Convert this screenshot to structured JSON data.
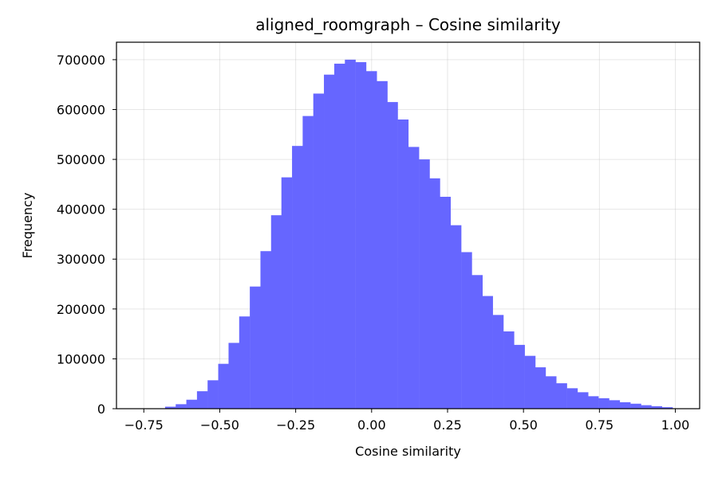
{
  "chart_data": {
    "type": "bar",
    "title": "aligned_roomgraph – Cosine similarity",
    "xlabel": "Cosine similarity",
    "ylabel": "Frequency",
    "xlim": [
      -0.84,
      1.08
    ],
    "ylim": [
      0,
      735000
    ],
    "xticks": [
      -0.75,
      -0.5,
      -0.25,
      0.0,
      0.25,
      0.5,
      0.75,
      1.0
    ],
    "xtick_labels": [
      "−0.75",
      "−0.50",
      "−0.25",
      "0.00",
      "0.25",
      "0.50",
      "0.75",
      "1.00"
    ],
    "yticks": [
      0,
      100000,
      200000,
      300000,
      400000,
      500000,
      600000,
      700000
    ],
    "ytick_labels": [
      "0",
      "100000",
      "200000",
      "300000",
      "400000",
      "500000",
      "600000",
      "700000"
    ],
    "grid": true,
    "bar_color": "#6666ff",
    "bin_width": 0.0348,
    "bins": [
      -0.68,
      -0.645,
      -0.61,
      -0.575,
      -0.54,
      -0.505,
      -0.471,
      -0.436,
      -0.401,
      -0.366,
      -0.331,
      -0.297,
      -0.262,
      -0.227,
      -0.192,
      -0.157,
      -0.123,
      -0.088,
      -0.053,
      -0.018,
      0.017,
      0.051,
      0.086,
      0.121,
      0.156,
      0.19,
      0.225,
      0.26,
      0.295,
      0.33,
      0.364,
      0.399,
      0.434,
      0.469,
      0.504,
      0.538,
      0.573,
      0.608,
      0.643,
      0.678,
      0.712,
      0.747,
      0.782,
      0.817,
      0.852,
      0.886,
      0.921,
      0.956
    ],
    "values": [
      4000,
      9000,
      18000,
      35000,
      57000,
      90000,
      132000,
      185000,
      245000,
      316000,
      388000,
      464000,
      527000,
      587000,
      632000,
      670000,
      692000,
      700000,
      695000,
      677000,
      657000,
      615000,
      580000,
      525000,
      500000,
      462000,
      425000,
      368000,
      314000,
      268000,
      226000,
      188000,
      155000,
      128000,
      106000,
      83000,
      65000,
      51000,
      41000,
      33000,
      25000,
      21000,
      17000,
      13000,
      10000,
      7000,
      5000,
      3000
    ]
  }
}
